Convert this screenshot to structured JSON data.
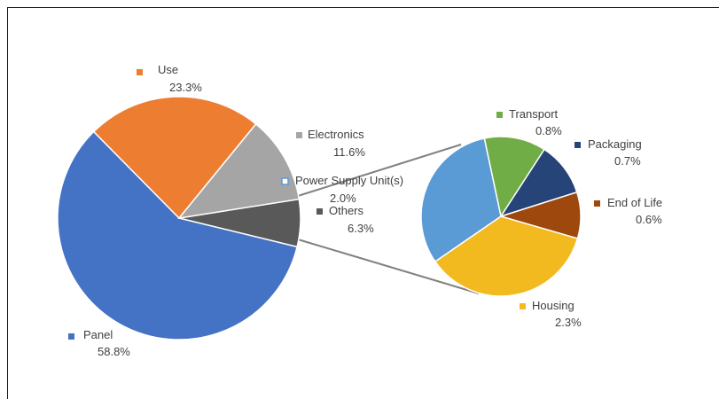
{
  "chart_data": {
    "type": "pie",
    "title": "",
    "main_pie": {
      "slices": [
        {
          "name": "Panel",
          "value": 58.8,
          "label": "58.8%",
          "color": "#4472C4"
        },
        {
          "name": "Use",
          "value": 23.3,
          "label": "23.3%",
          "color": "#ED7D31"
        },
        {
          "name": "Electronics",
          "value": 11.6,
          "label": "11.6%",
          "color": "#A5A5A5"
        },
        {
          "name": "Others",
          "value": 6.3,
          "label": "6.3%",
          "color": "#595959"
        }
      ]
    },
    "detail_pie": {
      "exploded_from": "Others",
      "slices": [
        {
          "name": "Power Supply Unit(s)",
          "value": 2.0,
          "label": "2.0%",
          "color": "#5B9BD5"
        },
        {
          "name": "Transport",
          "value": 0.8,
          "label": "0.8%",
          "color": "#70AD47"
        },
        {
          "name": "Packaging",
          "value": 0.7,
          "label": "0.7%",
          "color": "#264478"
        },
        {
          "name": "End of Life",
          "value": 0.6,
          "label": "0.6%",
          "color": "#9E480E"
        },
        {
          "name": "Housing",
          "value": 2.3,
          "label": "2.3%",
          "color": "#F2BA1E"
        }
      ]
    }
  }
}
